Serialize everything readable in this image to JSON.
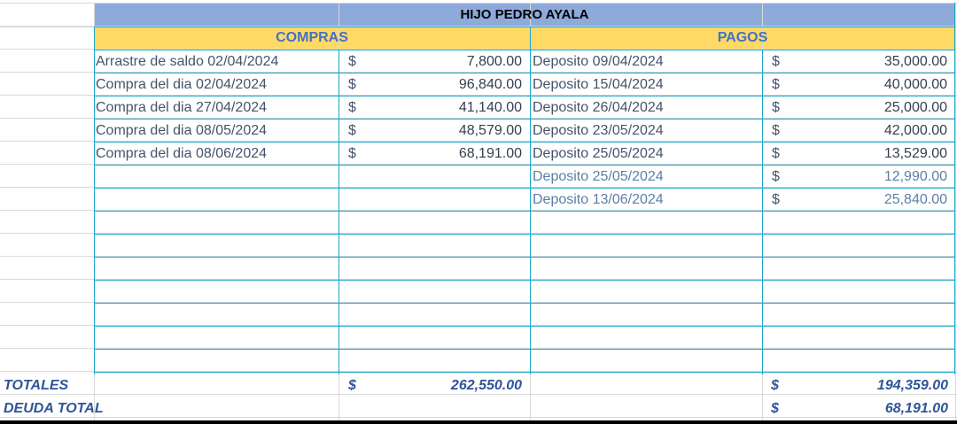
{
  "title": "HIJO PEDRO AYALA",
  "compras_header": "COMPRAS",
  "pagos_header": "PAGOS",
  "currency_symbol": "$",
  "compras": [
    {
      "desc": "Arrastre de saldo 02/04/2024",
      "amount": "7,800.00"
    },
    {
      "desc": "Compra del dia 02/04/2024",
      "amount": "96,840.00"
    },
    {
      "desc": "Compra del dia 27/04/2024",
      "amount": "41,140.00"
    },
    {
      "desc": "Compra del dia 08/05/2024",
      "amount": "48,579.00"
    },
    {
      "desc": "Compra del dia 08/06/2024",
      "amount": "68,191.00"
    }
  ],
  "pagos": [
    {
      "desc": "Deposito 09/04/2024",
      "amount": "35,000.00"
    },
    {
      "desc": "Deposito 15/04/2024",
      "amount": "40,000.00"
    },
    {
      "desc": "Deposito 26/04/2024",
      "amount": "25,000.00"
    },
    {
      "desc": "Deposito 23/05/2024",
      "amount": "42,000.00"
    },
    {
      "desc": "Deposito 25/05/2024",
      "amount": "13,529.00"
    },
    {
      "desc": "Deposito 25/05/2024",
      "amount": "12,990.00"
    },
    {
      "desc": "Deposito 13/06/2024",
      "amount": "25,840.00"
    }
  ],
  "totals": {
    "label": "TOTALES",
    "compras_total": "262,550.00",
    "pagos_total": "194,359.00"
  },
  "deuda": {
    "label": "DEUDA TOTAL",
    "amount": "68,191.00"
  },
  "colors": {
    "title_band": "#8eaadb",
    "header_band": "#ffd966",
    "border": "#1ba6c9",
    "header_text": "#4472c4",
    "totals_text": "#2f5597"
  }
}
